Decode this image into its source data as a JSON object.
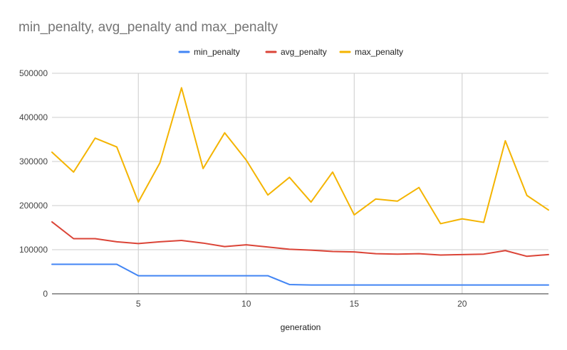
{
  "chart_data": {
    "type": "line",
    "title": "min_penalty, avg_penalty and max_penalty",
    "xlabel": "generation",
    "ylabel": "",
    "xlim": [
      1,
      24
    ],
    "ylim": [
      0,
      500000
    ],
    "x_ticks": [
      5,
      10,
      15,
      20
    ],
    "y_ticks": [
      0,
      100000,
      200000,
      300000,
      400000,
      500000
    ],
    "grid": true,
    "legend_position": "top",
    "x": [
      1,
      2,
      3,
      4,
      5,
      6,
      7,
      8,
      9,
      10,
      11,
      12,
      13,
      14,
      15,
      16,
      17,
      18,
      19,
      20,
      21,
      22,
      23,
      24
    ],
    "series": [
      {
        "name": "min_penalty",
        "color": "#4285f4",
        "values": [
          67000,
          67000,
          67000,
          67000,
          41000,
          41000,
          41000,
          41000,
          41000,
          41000,
          41000,
          21000,
          20000,
          20000,
          20000,
          20000,
          20000,
          20000,
          20000,
          20000,
          20000,
          20000,
          20000,
          20000
        ]
      },
      {
        "name": "avg_penalty",
        "color": "#db4437",
        "values": [
          163000,
          125000,
          125000,
          118000,
          114000,
          118000,
          121000,
          115000,
          107000,
          111000,
          106000,
          101000,
          99000,
          96000,
          95000,
          91000,
          90000,
          91000,
          88000,
          89000,
          90000,
          98000,
          85000,
          89000
        ]
      },
      {
        "name": "max_penalty",
        "color": "#f4b400",
        "values": [
          321000,
          276000,
          353000,
          333000,
          208000,
          297000,
          467000,
          284000,
          365000,
          303000,
          224000,
          264000,
          208000,
          276000,
          179000,
          215000,
          210000,
          241000,
          159000,
          170000,
          162000,
          347000,
          223000,
          190000
        ]
      }
    ]
  }
}
